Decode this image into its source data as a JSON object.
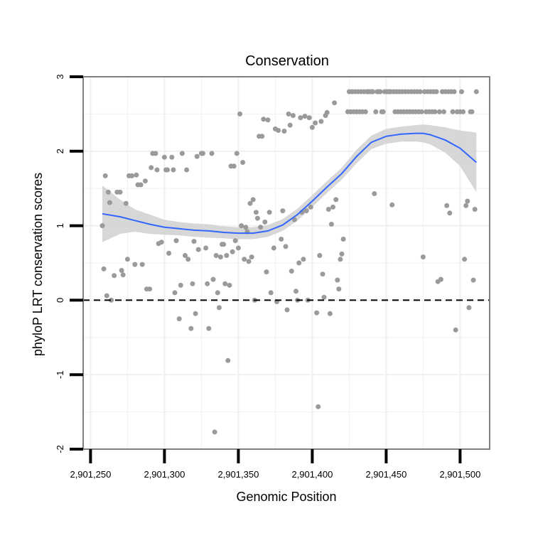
{
  "chart_data": {
    "type": "scatter",
    "title": "Conservation",
    "xlabel": "Genomic Position",
    "ylabel": "phyloP LRT conservation scores",
    "xlim": [
      2901245,
      2901520
    ],
    "ylim": [
      -2,
      3
    ],
    "xticks": [
      2901250,
      2901300,
      2901350,
      2901400,
      2901450,
      2901500
    ],
    "xtick_labels": [
      "2,901,250",
      "2,901,300",
      "2,901,350",
      "2,901,400",
      "2,901,450",
      "2,901,500"
    ],
    "yticks": [
      -2,
      -1,
      0,
      1,
      2,
      3
    ],
    "ytick_labels": [
      "-2",
      "-1",
      "0",
      "1",
      "2",
      "3"
    ],
    "grid": true,
    "reference_line": {
      "y": 0,
      "style": "dashed"
    },
    "colors": {
      "points": "#9a9a9a",
      "smooth": "#3366ff",
      "ribbon": "#d3d3d3",
      "panel_border": "#808080",
      "grid": "#f0f0f0"
    },
    "points": [
      [
        2901258,
        1.0
      ],
      [
        2901259,
        0.42
      ],
      [
        2901260,
        1.67
      ],
      [
        2901261,
        0.06
      ],
      [
        2901262,
        1.45
      ],
      [
        2901263,
        1.31
      ],
      [
        2901264,
        0.0
      ],
      [
        2901266,
        0.33
      ],
      [
        2901268,
        1.45
      ],
      [
        2901270,
        1.45
      ],
      [
        2901271,
        0.4
      ],
      [
        2901272,
        0.34
      ],
      [
        2901274,
        1.3
      ],
      [
        2901275,
        0.55
      ],
      [
        2901276,
        1.67
      ],
      [
        2901278,
        1.67
      ],
      [
        2901280,
        0.48
      ],
      [
        2901281,
        1.68
      ],
      [
        2901282,
        1.55
      ],
      [
        2901284,
        1.55
      ],
      [
        2901285,
        0.48
      ],
      [
        2901287,
        1.6
      ],
      [
        2901288,
        0.15
      ],
      [
        2901290,
        0.15
      ],
      [
        2901291,
        1.78
      ],
      [
        2901292,
        1.97
      ],
      [
        2901294,
        1.97
      ],
      [
        2901295,
        1.75
      ],
      [
        2901296,
        0.76
      ],
      [
        2901298,
        0.78
      ],
      [
        2901300,
        1.92
      ],
      [
        2901301,
        1.75
      ],
      [
        2901302,
        1.75
      ],
      [
        2901303,
        0.63
      ],
      [
        2901305,
        1.92
      ],
      [
        2901306,
        1.75
      ],
      [
        2901307,
        0.1
      ],
      [
        2901308,
        0.8
      ],
      [
        2901310,
        -0.25
      ],
      [
        2901311,
        0.2
      ],
      [
        2901312,
        1.97
      ],
      [
        2901314,
        0.6
      ],
      [
        2901315,
        1.75
      ],
      [
        2901316,
        0.55
      ],
      [
        2901318,
        -0.38
      ],
      [
        2901319,
        0.22
      ],
      [
        2901320,
        0.79
      ],
      [
        2901321,
        -0.18
      ],
      [
        2901322,
        1.93
      ],
      [
        2901323,
        0.68
      ],
      [
        2901325,
        1.97
      ],
      [
        2901326,
        1.97
      ],
      [
        2901328,
        0.7
      ],
      [
        2901329,
        0.22
      ],
      [
        2901330,
        -0.38
      ],
      [
        2901332,
        1.97
      ],
      [
        2901333,
        0.28
      ],
      [
        2901334,
        -1.77
      ],
      [
        2901335,
        0.6
      ],
      [
        2901336,
        0.1
      ],
      [
        2901337,
        -0.1
      ],
      [
        2901338,
        0.58
      ],
      [
        2901339,
        0.75
      ],
      [
        2901340,
        0.75
      ],
      [
        2901341,
        0.22
      ],
      [
        2901342,
        0.6
      ],
      [
        2901343,
        -0.81
      ],
      [
        2901344,
        0.2
      ],
      [
        2901345,
        1.8
      ],
      [
        2901346,
        0.65
      ],
      [
        2901347,
        1.8
      ],
      [
        2901348,
        0.8
      ],
      [
        2901349,
        1.97
      ],
      [
        2901350,
        0.7
      ],
      [
        2901351,
        2.5
      ],
      [
        2901352,
        1.0
      ],
      [
        2901353,
        1.85
      ],
      [
        2901354,
        0.55
      ],
      [
        2901355,
        0.98
      ],
      [
        2901356,
        0.92
      ],
      [
        2901357,
        0.52
      ],
      [
        2901358,
        1.3
      ],
      [
        2901359,
        0.58
      ],
      [
        2901360,
        1.35
      ],
      [
        2901361,
        0.0
      ],
      [
        2901362,
        1.18
      ],
      [
        2901363,
        1.1
      ],
      [
        2901364,
        2.2
      ],
      [
        2901365,
        0.98
      ],
      [
        2901366,
        2.2
      ],
      [
        2901367,
        2.43
      ],
      [
        2901368,
        1.05
      ],
      [
        2901369,
        0.38
      ],
      [
        2901370,
        2.42
      ],
      [
        2901371,
        1.18
      ],
      [
        2901372,
        0.1
      ],
      [
        2901374,
        0.7
      ],
      [
        2901375,
        2.3
      ],
      [
        2901376,
        -0.02
      ],
      [
        2901377,
        2.28
      ],
      [
        2901379,
        0.82
      ],
      [
        2901380,
        1.2
      ],
      [
        2901381,
        2.27
      ],
      [
        2901382,
        0.72
      ],
      [
        2901383,
        -0.13
      ],
      [
        2901384,
        2.5
      ],
      [
        2901385,
        2.35
      ],
      [
        2901386,
        0.39
      ],
      [
        2901387,
        2.48
      ],
      [
        2901388,
        1.08
      ],
      [
        2901389,
        0.12
      ],
      [
        2901390,
        0.0
      ],
      [
        2901391,
        0.5
      ],
      [
        2901392,
        2.45
      ],
      [
        2901393,
        1.18
      ],
      [
        2901394,
        0.55
      ],
      [
        2901395,
        2.47
      ],
      [
        2901396,
        1.2
      ],
      [
        2901397,
        0.0
      ],
      [
        2901398,
        2.45
      ],
      [
        2901399,
        1.25
      ],
      [
        2901400,
        2.32
      ],
      [
        2901402,
        2.38
      ],
      [
        2901403,
        -0.17
      ],
      [
        2901404,
        -1.43
      ],
      [
        2901405,
        0.6
      ],
      [
        2901406,
        2.4
      ],
      [
        2901407,
        0.35
      ],
      [
        2901408,
        0.04
      ],
      [
        2901409,
        2.48
      ],
      [
        2901410,
        2.52
      ],
      [
        2901411,
        1.22
      ],
      [
        2901412,
        -0.18
      ],
      [
        2901413,
        1.02
      ],
      [
        2901414,
        1.25
      ],
      [
        2901415,
        2.65
      ],
      [
        2901416,
        1.35
      ],
      [
        2901417,
        0.27
      ],
      [
        2901418,
        0.15
      ],
      [
        2901419,
        0.55
      ],
      [
        2901420,
        0.62
      ],
      [
        2901421,
        0.82
      ],
      [
        2901424,
        2.53
      ],
      [
        2901425,
        2.8
      ],
      [
        2901426,
        2.53
      ],
      [
        2901427,
        2.8
      ],
      [
        2901428,
        2.53
      ],
      [
        2901429,
        2.8
      ],
      [
        2901430,
        2.53
      ],
      [
        2901431,
        2.8
      ],
      [
        2901432,
        2.53
      ],
      [
        2901433,
        2.8
      ],
      [
        2901434,
        2.53
      ],
      [
        2901435,
        2.8
      ],
      [
        2901436,
        2.53
      ],
      [
        2901437,
        2.8
      ],
      [
        2901438,
        2.8
      ],
      [
        2901439,
        2.8
      ],
      [
        2901440,
        2.8
      ],
      [
        2901441,
        2.8
      ],
      [
        2901442,
        1.43
      ],
      [
        2901443,
        2.53
      ],
      [
        2901444,
        2.8
      ],
      [
        2901445,
        2.8
      ],
      [
        2901446,
        2.8
      ],
      [
        2901447,
        2.53
      ],
      [
        2901448,
        2.53
      ],
      [
        2901449,
        2.8
      ],
      [
        2901450,
        2.8
      ],
      [
        2901451,
        2.8
      ],
      [
        2901452,
        2.8
      ],
      [
        2901453,
        2.8
      ],
      [
        2901454,
        1.28
      ],
      [
        2901455,
        2.8
      ],
      [
        2901456,
        2.53
      ],
      [
        2901457,
        2.8
      ],
      [
        2901458,
        2.53
      ],
      [
        2901459,
        2.8
      ],
      [
        2901460,
        2.53
      ],
      [
        2901461,
        2.8
      ],
      [
        2901462,
        2.53
      ],
      [
        2901463,
        2.8
      ],
      [
        2901464,
        2.53
      ],
      [
        2901465,
        2.8
      ],
      [
        2901466,
        2.53
      ],
      [
        2901467,
        2.8
      ],
      [
        2901468,
        2.53
      ],
      [
        2901469,
        2.8
      ],
      [
        2901470,
        2.53
      ],
      [
        2901471,
        2.8
      ],
      [
        2901472,
        2.53
      ],
      [
        2901473,
        2.8
      ],
      [
        2901474,
        2.53
      ],
      [
        2901475,
        0.58
      ],
      [
        2901476,
        2.8
      ],
      [
        2901477,
        2.53
      ],
      [
        2901478,
        2.8
      ],
      [
        2901479,
        2.53
      ],
      [
        2901480,
        2.8
      ],
      [
        2901481,
        2.53
      ],
      [
        2901482,
        2.8
      ],
      [
        2901483,
        2.53
      ],
      [
        2901484,
        2.8
      ],
      [
        2901485,
        0.25
      ],
      [
        2901486,
        2.53
      ],
      [
        2901487,
        0.28
      ],
      [
        2901488,
        2.8
      ],
      [
        2901489,
        2.53
      ],
      [
        2901490,
        2.8
      ],
      [
        2901491,
        1.27
      ],
      [
        2901492,
        2.8
      ],
      [
        2901493,
        1.17
      ],
      [
        2901494,
        2.8
      ],
      [
        2901495,
        2.53
      ],
      [
        2901496,
        2.8
      ],
      [
        2901497,
        -0.4
      ],
      [
        2901498,
        2.53
      ],
      [
        2901500,
        2.53
      ],
      [
        2901501,
        2.8
      ],
      [
        2901502,
        2.53
      ],
      [
        2901503,
        0.55
      ],
      [
        2901504,
        1.27
      ],
      [
        2901505,
        1.33
      ],
      [
        2901506,
        -0.1
      ],
      [
        2901507,
        2.53
      ],
      [
        2901508,
        2.53
      ],
      [
        2901509,
        0.27
      ],
      [
        2901510,
        1.22
      ],
      [
        2901511,
        2.8
      ]
    ],
    "smooth": {
      "x": [
        2901258,
        2901270,
        2901280,
        2901290,
        2901300,
        2901310,
        2901320,
        2901330,
        2901340,
        2901350,
        2901360,
        2901370,
        2901380,
        2901390,
        2901400,
        2901410,
        2901420,
        2901430,
        2901440,
        2901450,
        2901460,
        2901470,
        2901475,
        2901480,
        2901490,
        2901500,
        2901511
      ],
      "y": [
        1.16,
        1.12,
        1.07,
        1.02,
        0.98,
        0.96,
        0.94,
        0.93,
        0.91,
        0.9,
        0.9,
        0.93,
        1.01,
        1.15,
        1.33,
        1.52,
        1.7,
        1.93,
        2.12,
        2.2,
        2.23,
        2.24,
        2.24,
        2.22,
        2.15,
        2.04,
        1.85
      ],
      "lower": [
        0.78,
        0.89,
        0.92,
        0.89,
        0.88,
        0.87,
        0.85,
        0.84,
        0.83,
        0.82,
        0.82,
        0.85,
        0.93,
        1.07,
        1.25,
        1.44,
        1.62,
        1.84,
        2.03,
        2.1,
        2.13,
        2.13,
        2.12,
        2.09,
        1.98,
        1.8,
        1.45
      ],
      "upper": [
        1.54,
        1.35,
        1.22,
        1.15,
        1.08,
        1.05,
        1.03,
        1.02,
        0.99,
        0.98,
        0.98,
        1.01,
        1.09,
        1.23,
        1.41,
        1.6,
        1.78,
        2.02,
        2.21,
        2.3,
        2.33,
        2.35,
        2.36,
        2.35,
        2.32,
        2.28,
        2.25
      ]
    }
  }
}
